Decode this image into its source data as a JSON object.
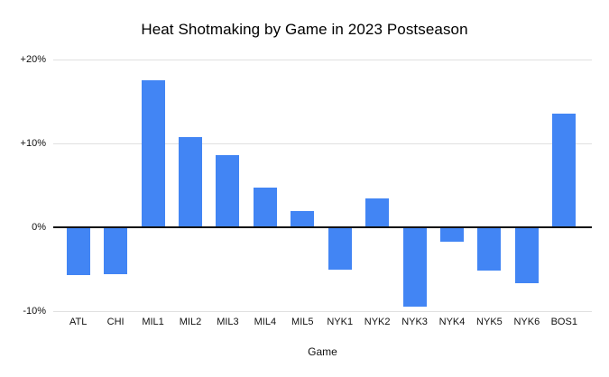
{
  "chart_data": {
    "type": "bar",
    "title": "Heat Shotmaking by Game in 2023 Postseason",
    "xlabel": "Game",
    "ylabel": "",
    "categories": [
      "ATL",
      "CHI",
      "MIL1",
      "MIL2",
      "MIL3",
      "MIL4",
      "MIL5",
      "NYK1",
      "NYK2",
      "NYK3",
      "NYK4",
      "NYK5",
      "NYK6",
      "BOS1"
    ],
    "values": [
      -5.7,
      -5.6,
      17.5,
      10.8,
      8.6,
      4.7,
      1.9,
      -5.1,
      3.4,
      -9.5,
      -1.7,
      -5.2,
      -6.7,
      13.6
    ],
    "value_unit": "%",
    "ylim": [
      -10,
      20
    ],
    "yticks": [
      {
        "value": 20,
        "label": "+20%"
      },
      {
        "value": 10,
        "label": "+10%"
      },
      {
        "value": 0,
        "label": "0%"
      },
      {
        "value": -10,
        "label": "-10%"
      }
    ],
    "grid": true,
    "legend": "none",
    "colors": {
      "bar": "#4285f4",
      "gridline": "#e0e0e0",
      "zero_line": "#111111",
      "text": "#111111",
      "title_text": "#000000",
      "background": "#ffffff"
    }
  }
}
